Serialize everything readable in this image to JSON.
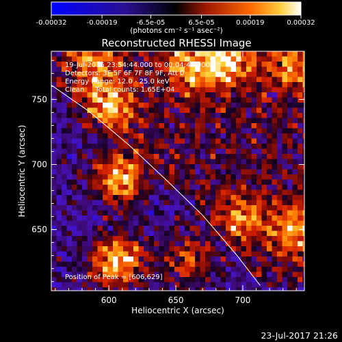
{
  "window": {
    "timestamp": "23-Jul-2017 21:26"
  },
  "colorbar": {
    "tick_labels": [
      "-0.00032",
      "-0.00019",
      "-6.5e-05",
      "6.5e-05",
      "0.00019",
      "0.00032"
    ],
    "tick_values": [
      -0.00032,
      -0.00019,
      -6.5e-05,
      6.5e-05,
      0.00019,
      0.00032
    ],
    "range": [
      -0.00032,
      0.00032
    ],
    "unit_label": "(photons cm⁻² s⁻¹ asec⁻²)",
    "colormap": [
      "#0000ff",
      "#3a1aa0",
      "#000000",
      "#c81e00",
      "#ff8a00",
      "#ffffff"
    ]
  },
  "chart_data": {
    "type": "heatmap",
    "title": "Reconstructed RHESSI Image",
    "xlabel": "Heliocentric X (arcsec)",
    "ylabel": "Heliocentric Y (arcsec)",
    "xlim": [
      557,
      746
    ],
    "ylim": [
      603,
      787
    ],
    "xticks": [
      600,
      650,
      700
    ],
    "yticks": [
      650,
      700,
      750
    ],
    "annotations": [
      "19-Jul-2015 23:54:44.000 to 00:04:44.000",
      "Detectors: 3F 5F 6F 7F 8F 9F, Att 0",
      "Energy Range: 12.0 - 25.0 keV",
      "Clean     Total counts: 1.65E+04"
    ],
    "peak_label": "Position of Peak = [606,629]",
    "peak_position": [
      606,
      629
    ],
    "limb_curve": [
      [
        557,
        761
      ],
      [
        585,
        741
      ],
      [
        615,
        715
      ],
      [
        645,
        686
      ],
      [
        670,
        661
      ],
      [
        695,
        631
      ],
      [
        713,
        607
      ]
    ],
    "hot_spots": [
      {
        "x": 609,
        "y": 690,
        "amp": 0.95
      },
      {
        "x": 606,
        "y": 625,
        "amp": 1.0
      },
      {
        "x": 600,
        "y": 745,
        "amp": 0.75
      },
      {
        "x": 690,
        "y": 780,
        "amp": 0.8
      },
      {
        "x": 660,
        "y": 775,
        "amp": 0.7
      },
      {
        "x": 740,
        "y": 775,
        "amp": 0.6
      },
      {
        "x": 740,
        "y": 650,
        "amp": 0.7
      },
      {
        "x": 660,
        "y": 628,
        "amp": 0.6
      },
      {
        "x": 700,
        "y": 660,
        "amp": 0.55
      },
      {
        "x": 590,
        "y": 780,
        "amp": 0.55
      }
    ]
  }
}
